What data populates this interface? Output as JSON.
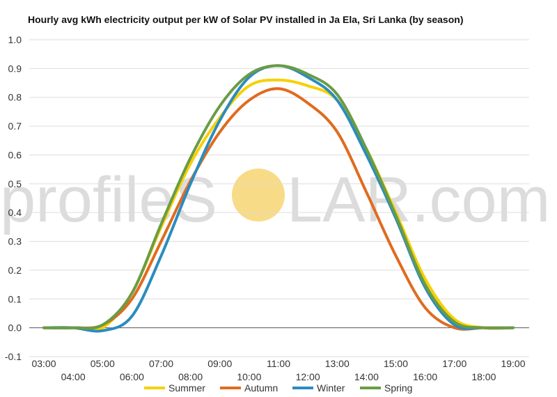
{
  "chart_data": {
    "type": "line",
    "title": "Hourly avg kWh electricity output per kW of Solar PV installed in Ja Ela, Sri Lanka (by season)",
    "xlabel": "",
    "ylabel": "",
    "ylim": [
      -0.1,
      1.0
    ],
    "yticks": [
      "-0.1",
      "0.0",
      "0.1",
      "0.2",
      "0.3",
      "0.4",
      "0.5",
      "0.6",
      "0.7",
      "0.8",
      "0.9",
      "1.0"
    ],
    "x": [
      "03:00",
      "04:00",
      "05:00",
      "06:00",
      "07:00",
      "08:00",
      "09:00",
      "10:00",
      "11:00",
      "12:00",
      "13:00",
      "14:00",
      "15:00",
      "16:00",
      "17:00",
      "18:00",
      "19:00"
    ],
    "grid": true,
    "legend_position": "bottom",
    "series": [
      {
        "name": "Summer",
        "color": "#f7d002",
        "values": [
          0.0,
          0.0,
          0.0,
          0.12,
          0.35,
          0.57,
          0.73,
          0.84,
          0.86,
          0.84,
          0.79,
          0.62,
          0.4,
          0.17,
          0.03,
          0.0,
          0.0
        ]
      },
      {
        "name": "Autumn",
        "color": "#e06b1f",
        "values": [
          0.0,
          0.0,
          0.01,
          0.1,
          0.3,
          0.51,
          0.68,
          0.79,
          0.83,
          0.78,
          0.68,
          0.47,
          0.25,
          0.07,
          0.0,
          0.0,
          0.0
        ]
      },
      {
        "name": "Winter",
        "color": "#2b8cbe",
        "values": [
          0.0,
          0.0,
          -0.01,
          0.04,
          0.25,
          0.5,
          0.72,
          0.87,
          0.91,
          0.87,
          0.79,
          0.6,
          0.38,
          0.14,
          0.01,
          0.0,
          0.0
        ]
      },
      {
        "name": "Spring",
        "color": "#6a9c45",
        "values": [
          0.0,
          0.0,
          0.01,
          0.12,
          0.36,
          0.59,
          0.77,
          0.88,
          0.91,
          0.88,
          0.81,
          0.62,
          0.39,
          0.15,
          0.02,
          0.0,
          0.0
        ]
      }
    ]
  },
  "watermark": {
    "left": "profileS",
    "right": "LAR.com",
    "sun_color": "#f7d87a"
  }
}
